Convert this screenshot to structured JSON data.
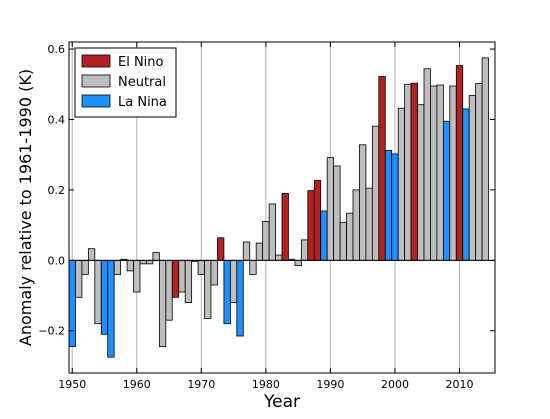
{
  "chart_data": {
    "type": "bar",
    "xlabel": "Year",
    "ylabel": "Anomaly relative to 1961-1990 (K)",
    "xlim": [
      1949.5,
      2015.5
    ],
    "ylim": [
      -0.32,
      0.62
    ],
    "xticks": [
      1950,
      1960,
      1970,
      1980,
      1990,
      2000,
      2010
    ],
    "xtick_labels": [
      "1950",
      "1960",
      "1970",
      "1980",
      "1990",
      "2000",
      "2010"
    ],
    "yticks": [
      -0.2,
      0.0,
      0.2,
      0.4,
      0.6
    ],
    "ytick_labels": [
      "−0.2",
      "0.0",
      "0.2",
      "0.4",
      "0.6"
    ],
    "grid": "vertical",
    "legend_position": "top-left",
    "legend": [
      {
        "key": "el_nino",
        "label": "El Nino",
        "color": "#b22222"
      },
      {
        "key": "neutral",
        "label": "Neutral",
        "color": "#bebebe"
      },
      {
        "key": "la_nina",
        "label": "La Nina",
        "color": "#1e90ff"
      }
    ],
    "x": [
      1950,
      1951,
      1952,
      1953,
      1954,
      1955,
      1956,
      1957,
      1958,
      1959,
      1960,
      1961,
      1962,
      1963,
      1964,
      1965,
      1966,
      1967,
      1968,
      1969,
      1970,
      1971,
      1972,
      1973,
      1974,
      1975,
      1976,
      1977,
      1978,
      1979,
      1980,
      1981,
      1982,
      1983,
      1984,
      1985,
      1986,
      1987,
      1988,
      1989,
      1990,
      1991,
      1992,
      1993,
      1994,
      1995,
      1996,
      1997,
      1998,
      1999,
      2000,
      2001,
      2002,
      2003,
      2004,
      2005,
      2006,
      2007,
      2008,
      2009,
      2010,
      2011,
      2012,
      2013,
      2014
    ],
    "values": [
      -0.245,
      -0.105,
      -0.04,
      0.033,
      -0.18,
      -0.21,
      -0.275,
      -0.04,
      0.003,
      -0.03,
      -0.09,
      -0.01,
      -0.01,
      0.022,
      -0.245,
      -0.17,
      -0.105,
      -0.09,
      -0.12,
      -0.003,
      -0.04,
      -0.165,
      -0.07,
      0.064,
      -0.18,
      -0.12,
      -0.215,
      0.052,
      -0.04,
      0.049,
      0.11,
      0.16,
      0.015,
      0.19,
      0.003,
      -0.015,
      0.058,
      0.198,
      0.227,
      0.14,
      0.292,
      0.268,
      0.108,
      0.134,
      0.2,
      0.328,
      0.205,
      0.381,
      0.522,
      0.312,
      0.302,
      0.432,
      0.5,
      0.503,
      0.442,
      0.544,
      0.495,
      0.498,
      0.395,
      0.495,
      0.553,
      0.43,
      0.468,
      0.502,
      0.575
    ],
    "phase": [
      "la_nina",
      "neutral",
      "neutral",
      "neutral",
      "neutral",
      "la_nina",
      "la_nina",
      "neutral",
      "neutral",
      "neutral",
      "neutral",
      "neutral",
      "neutral",
      "neutral",
      "neutral",
      "neutral",
      "el_nino",
      "neutral",
      "neutral",
      "neutral",
      "neutral",
      "neutral",
      "neutral",
      "el_nino",
      "la_nina",
      "neutral",
      "la_nina",
      "neutral",
      "neutral",
      "neutral",
      "neutral",
      "neutral",
      "neutral",
      "el_nino",
      "neutral",
      "neutral",
      "neutral",
      "el_nino",
      "el_nino",
      "la_nina",
      "neutral",
      "neutral",
      "neutral",
      "neutral",
      "neutral",
      "neutral",
      "neutral",
      "neutral",
      "el_nino",
      "la_nina",
      "la_nina",
      "neutral",
      "neutral",
      "el_nino",
      "neutral",
      "neutral",
      "neutral",
      "neutral",
      "la_nina",
      "neutral",
      "el_nino",
      "la_nina",
      "neutral",
      "neutral",
      "neutral"
    ]
  }
}
